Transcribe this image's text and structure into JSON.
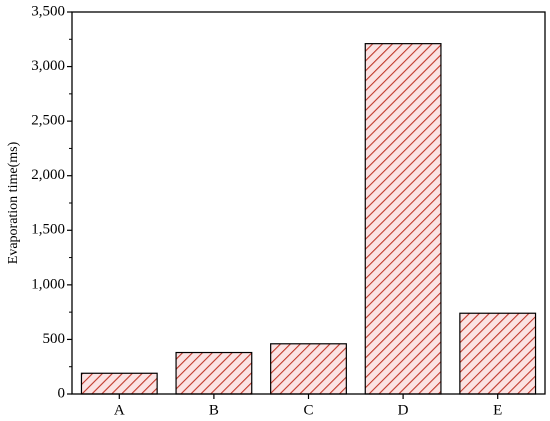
{
  "chart_data": {
    "type": "bar",
    "y_label": "Evaporation time(ms)",
    "categories": [
      "A",
      "B",
      "C",
      "D",
      "E"
    ],
    "values": [
      190,
      380,
      460,
      3210,
      740
    ],
    "color": "#c0392b",
    "ylim": [
      0,
      3500
    ],
    "yticks": [
      0,
      500,
      {
        "value": 1000,
        "label": "1,000"
      },
      {
        "value": 1500,
        "label": "1,500"
      },
      {
        "value": 2000,
        "label": "2,000"
      },
      {
        "value": 2500,
        "label": "2,500"
      },
      {
        "value": 3000,
        "label": "3,000"
      },
      {
        "value": 3500,
        "label": "3,500"
      }
    ]
  }
}
